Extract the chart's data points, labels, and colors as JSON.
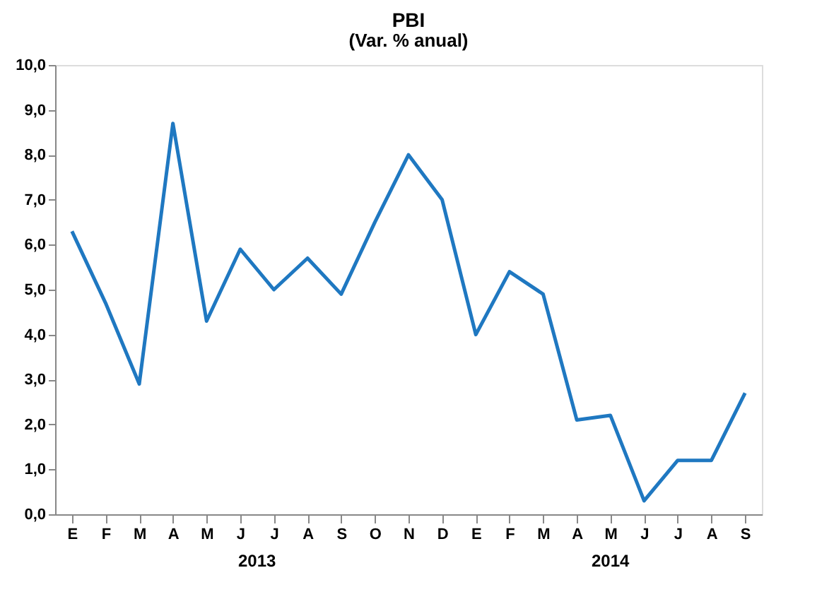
{
  "chart_data": {
    "type": "line",
    "title": "PBI",
    "subtitle": "(Var. % anual)",
    "categories": [
      "E",
      "F",
      "M",
      "A",
      "M",
      "J",
      "J",
      "A",
      "S",
      "O",
      "N",
      "D",
      "E",
      "F",
      "M",
      "A",
      "M",
      "J",
      "J",
      "A",
      "S"
    ],
    "series": [
      {
        "color": "#1f78c1",
        "values": [
          6.3,
          4.7,
          2.9,
          8.7,
          4.3,
          5.9,
          5.0,
          5.7,
          4.9,
          6.5,
          8.0,
          7.0,
          4.0,
          5.4,
          4.9,
          2.1,
          2.2,
          0.3,
          1.2,
          1.2,
          2.7
        ]
      }
    ],
    "ylim": [
      0,
      10
    ],
    "yticks": [
      {
        "value": 0,
        "label": "0,0"
      },
      {
        "value": 1,
        "label": "1,0"
      },
      {
        "value": 2,
        "label": "2,0"
      },
      {
        "value": 3,
        "label": "3,0"
      },
      {
        "value": 4,
        "label": "4,0"
      },
      {
        "value": 5,
        "label": "5,0"
      },
      {
        "value": 6,
        "label": "6,0"
      },
      {
        "value": 7,
        "label": "7,0"
      },
      {
        "value": 8,
        "label": "8,0"
      },
      {
        "value": 9,
        "label": "9,0"
      },
      {
        "value": 10,
        "label": "10,0"
      }
    ],
    "annotations": [
      "2013",
      "2014"
    ],
    "grid": false,
    "marker": "none",
    "line_style": "solid"
  }
}
